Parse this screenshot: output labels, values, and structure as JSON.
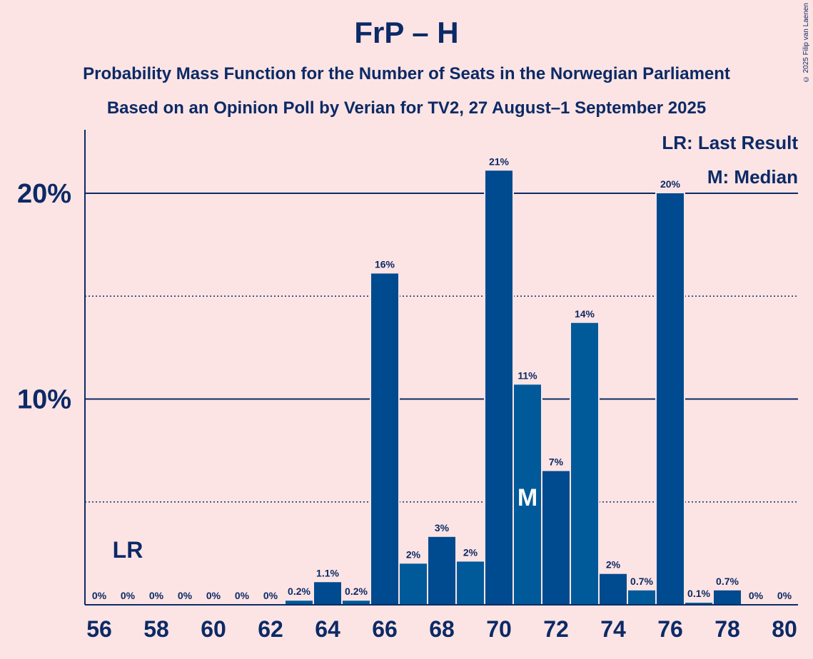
{
  "header": {
    "title": "FrP – H",
    "subtitle_1": "Probability Mass Function for the Number of Seats in the Norwegian Parliament",
    "subtitle_2": "Based on an Opinion Poll by Verian for TV2, 27 August–1 September 2025",
    "copyright": "© 2025 Filip van Laenen"
  },
  "legend": {
    "last_result": "LR: Last Result",
    "median": "M: Median"
  },
  "markers": {
    "last_result_label": "LR",
    "last_result_seat": 57,
    "median_label": "M",
    "median_seat": 71
  },
  "colors": {
    "background": "#fde4e4",
    "text": "#0b2a66",
    "bar_dark": "#004a8f",
    "bar_light": "#005a9a"
  },
  "chart_data": {
    "type": "bar",
    "x": [
      56,
      57,
      58,
      59,
      60,
      61,
      62,
      63,
      64,
      65,
      66,
      67,
      68,
      69,
      70,
      71,
      72,
      73,
      74,
      75,
      76,
      77,
      78,
      79,
      80
    ],
    "values": [
      0,
      0,
      0,
      0,
      0,
      0,
      0,
      0.2,
      1.1,
      0.2,
      16.1,
      2.0,
      3.3,
      2.1,
      21.1,
      10.7,
      6.5,
      13.7,
      1.5,
      0.7,
      20.0,
      0.1,
      0.7,
      0,
      0
    ],
    "data_labels": [
      "0%",
      "0%",
      "0%",
      "0%",
      "0%",
      "0%",
      "0%",
      "0.2%",
      "1.1%",
      "0.2%",
      "16%",
      "2%",
      "3%",
      "2%",
      "21%",
      "11%",
      "7%",
      "14%",
      "2%",
      "0.7%",
      "20%",
      "0.1%",
      "0.7%",
      "0%",
      "0%"
    ],
    "x_tick_labels": [
      "56",
      "58",
      "60",
      "62",
      "64",
      "66",
      "68",
      "70",
      "72",
      "74",
      "76",
      "78",
      "80"
    ],
    "y_tick_labels": [
      "10%",
      "20%"
    ],
    "y_ticks": [
      10,
      20
    ],
    "y_minor_ticks": [
      5,
      15
    ],
    "ylim": [
      0,
      23
    ],
    "grid": true,
    "legend_position": "top-right"
  }
}
